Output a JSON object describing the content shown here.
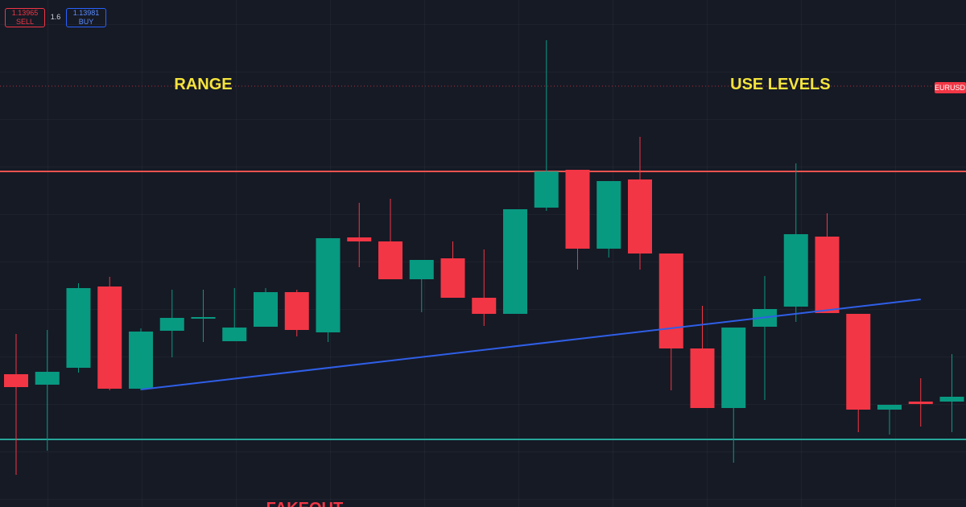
{
  "toolbar": {
    "sell_price": "1.13965",
    "sell_label": "SELL",
    "spread": "1.6",
    "buy_price": "1.13981",
    "buy_label": "BUY",
    "symbol_tag": "EURUSD"
  },
  "chart_data": {
    "type": "candlestick",
    "ylim": [
      0,
      630
    ],
    "up_color": "#089981",
    "down_color": "#f23645",
    "open": [
      165,
      152,
      173,
      274,
      147,
      219,
      234,
      206,
      224,
      267,
      217,
      335,
      330,
      283,
      309,
      260,
      240,
      372,
      419,
      321,
      407,
      315,
      197,
      123,
      224,
      249,
      336,
      240,
      121,
      131,
      131
    ],
    "close": [
      149,
      168,
      272,
      147,
      218,
      235,
      236,
      223,
      267,
      220,
      334,
      330,
      283,
      307,
      260,
      240,
      370,
      417,
      321,
      405,
      315,
      197,
      123,
      223,
      246,
      339,
      241,
      121,
      127,
      128,
      137
    ],
    "high": [
      215,
      220,
      278,
      286,
      222,
      270,
      270,
      272,
      272,
      270,
      334,
      378,
      383,
      307,
      330,
      320,
      370,
      580,
      419,
      405,
      460,
      315,
      250,
      223,
      287,
      427,
      365,
      240,
      127,
      160,
      190
    ],
    "low": [
      40,
      70,
      167,
      145,
      145,
      186,
      205,
      206,
      224,
      212,
      205,
      298,
      283,
      242,
      260,
      225,
      240,
      368,
      295,
      310,
      295,
      145,
      123,
      55,
      133,
      230,
      241,
      93,
      90,
      100,
      93
    ],
    "hlines": [
      {
        "value": 417,
        "color": "#f05350"
      },
      {
        "value": 84,
        "color": "#26a69a"
      }
    ],
    "trendline": {
      "color": "#2f5fe8",
      "from": [
        4,
        146
      ],
      "to": [
        29,
        258
      ]
    },
    "annotations": [
      {
        "text": "RANGE",
        "color": "#f5e43c",
        "at": [
          6,
          519
        ]
      },
      {
        "text": "USE LEVELS",
        "color": "#f5e43c",
        "at": [
          24.5,
          519
        ]
      },
      {
        "text": "FAKEOUT",
        "color": "#f23645",
        "at": [
          9.25,
          -8
        ]
      }
    ]
  }
}
